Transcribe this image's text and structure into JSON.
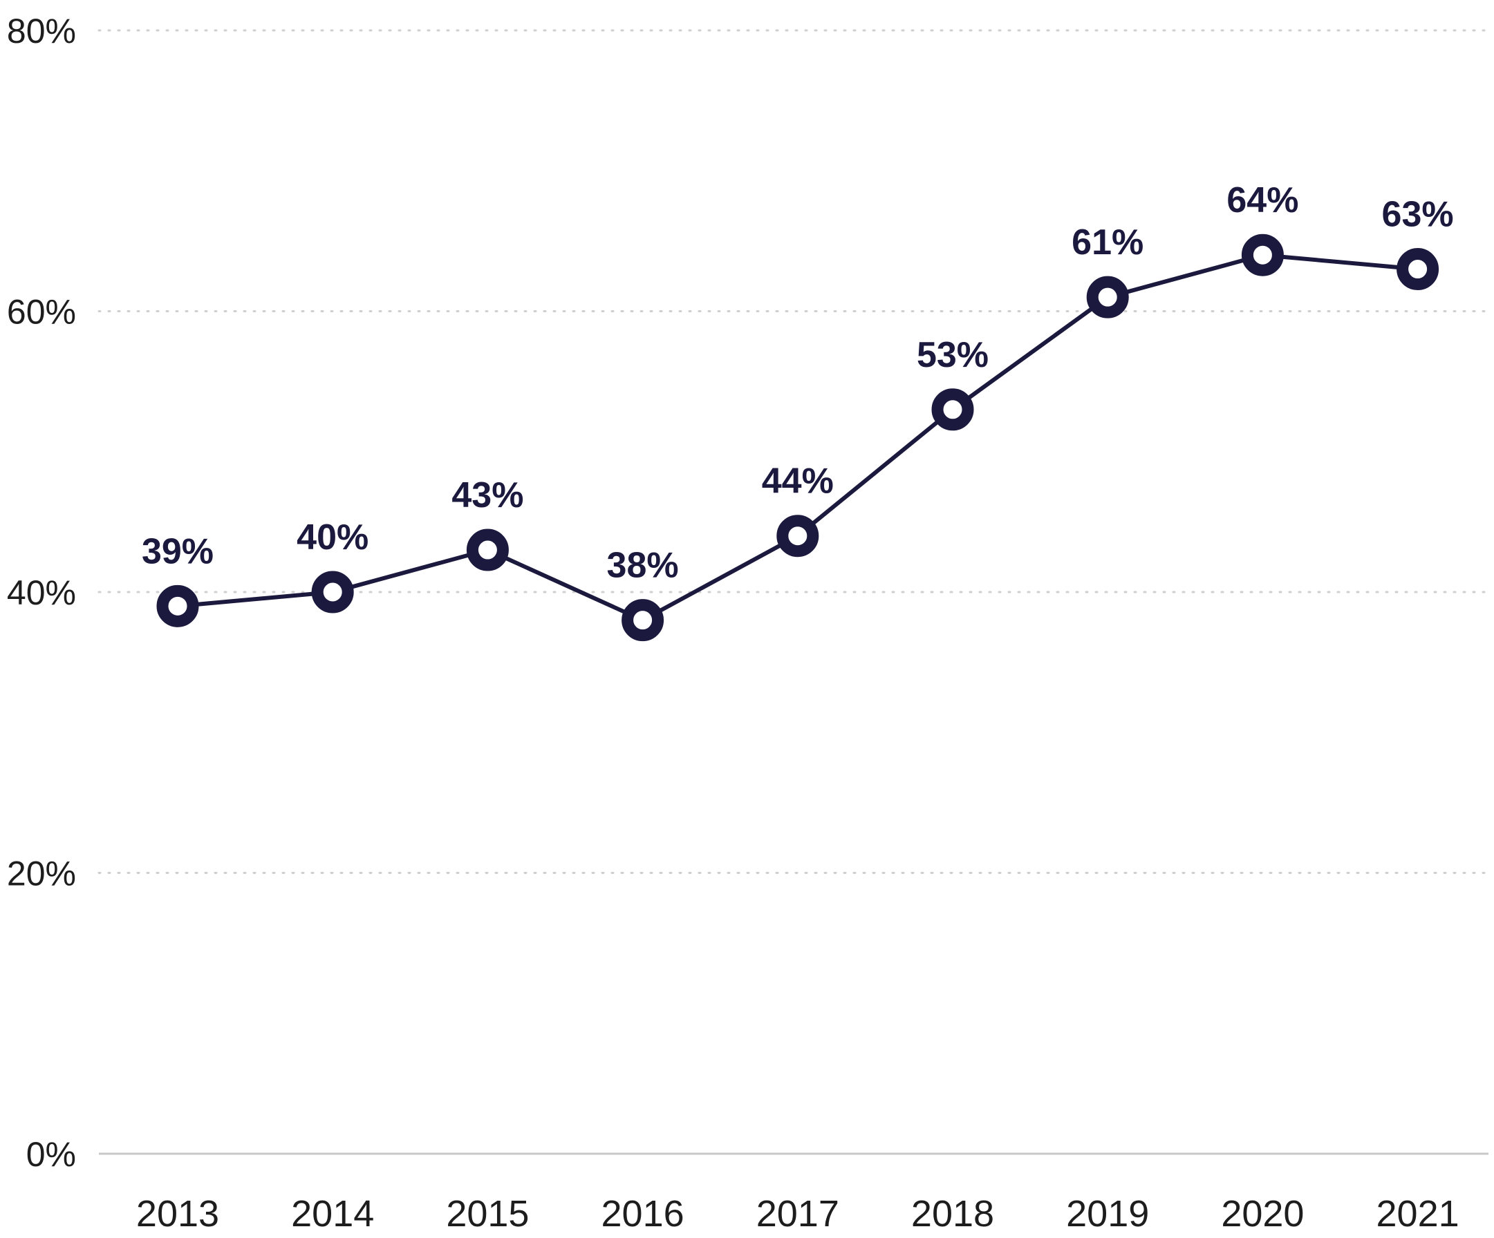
{
  "chart_data": {
    "type": "line",
    "title": "",
    "xlabel": "",
    "ylabel": "",
    "categories": [
      "2013",
      "2014",
      "2015",
      "2016",
      "2017",
      "2018",
      "2019",
      "2020",
      "2021"
    ],
    "series": [
      {
        "values": [
          39,
          40,
          43,
          38,
          44,
          53,
          61,
          64,
          63
        ],
        "labels": [
          "39%",
          "40%",
          "43%",
          "38%",
          "44%",
          "53%",
          "61%",
          "64%",
          "63%"
        ],
        "color": "#1b1a3e"
      }
    ],
    "ylim": [
      0,
      80
    ],
    "yticks": [
      0,
      20,
      40,
      60,
      80
    ],
    "ytick_labels": [
      "0%",
      "20%",
      "40%",
      "60%",
      "80%"
    ],
    "grid": "horizontal-dotted",
    "legend": "none",
    "colors": {
      "line": "#1b1a3e",
      "gridline": "#cfcfcf",
      "baseline": "#c8c8c8",
      "tick_text": "#1d1d1d"
    }
  }
}
